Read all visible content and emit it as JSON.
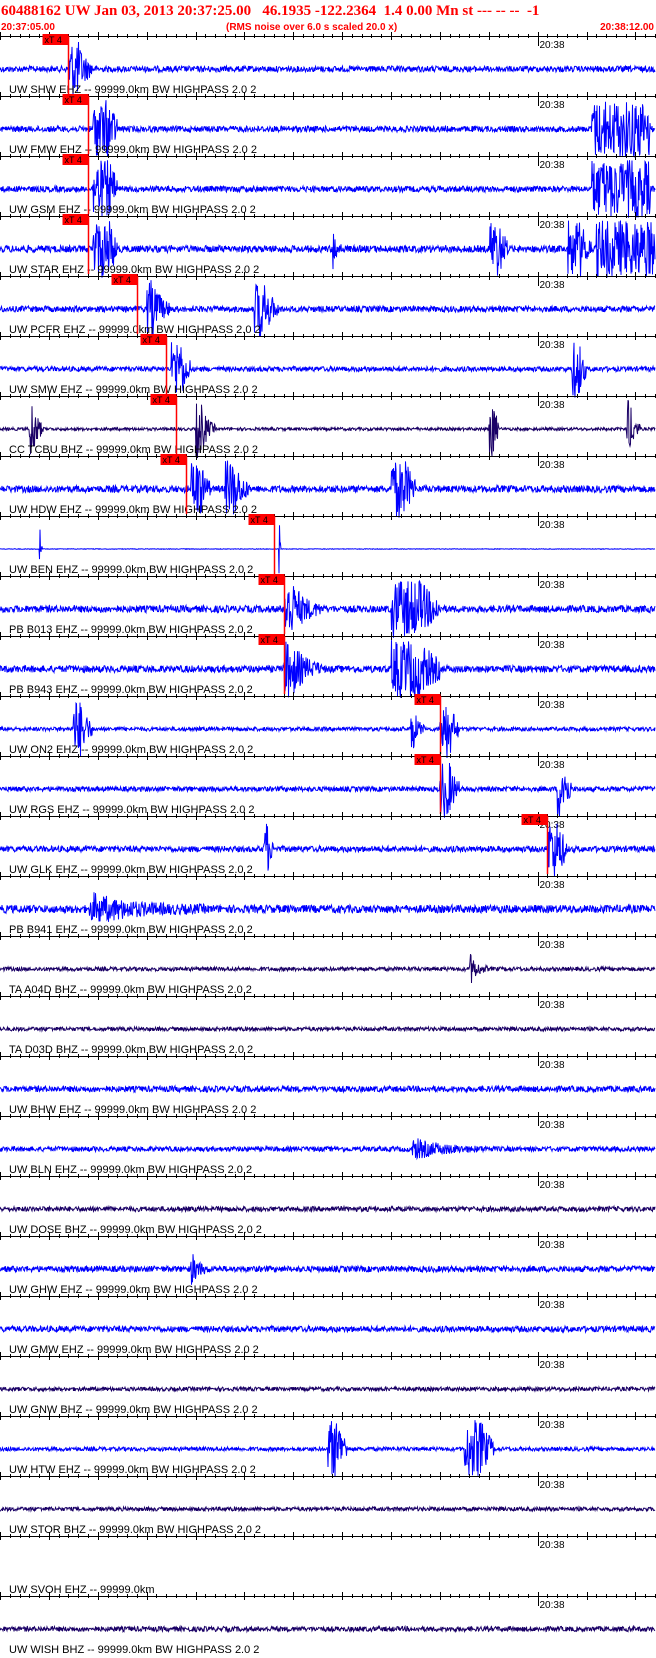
{
  "header": {
    "title": "60488162 UW Jan 03, 2013 20:37:25.00   46.1935 -122.2364  1.4 0.00 Mn st --- -- --  -1",
    "start_time": "20:37:05.00",
    "rms_note": "(RMS noise over 6.0 s scaled 20.0 x)",
    "end_time": "20:38:12.00"
  },
  "colors": {
    "trace_blue": "#0000ff",
    "trace_dark": "#1a0066",
    "pick_red": "#ff0000",
    "axis_black": "#000000"
  },
  "chart_data": {
    "type": "seismogram",
    "x_unit": "time",
    "time_start": "20:37:05.00",
    "time_end": "20:38:12.00",
    "minute_mark_label": "20:38",
    "pick_label": "xT 4",
    "traces": [
      {
        "label": "UW SHW EHZ -- 99999.0km BW  HIGHPASS  2.0  2",
        "color": "blue",
        "pick_s": 7,
        "amp": 3,
        "events": [
          [
            7,
            14,
            2.5
          ]
        ]
      },
      {
        "label": "UW FMW EHZ -- 99999.0km BW  HIGHPASS  2.0  2",
        "color": "blue",
        "pick_s": 9,
        "amp": 3,
        "events": [
          [
            9.5,
            32,
            2.5
          ],
          [
            60.5,
            80,
            6
          ]
        ]
      },
      {
        "label": "UW GSM EHZ -- 99999.0km BW  HIGHPASS  2.0  2",
        "color": "blue",
        "pick_s": 9,
        "amp": 3,
        "events": [
          [
            9.5,
            32,
            2.5
          ],
          [
            60.5,
            80,
            6
          ]
        ]
      },
      {
        "label": "UW STAR EHZ -- 99999.0km BW  HIGHPASS  2.0  2",
        "color": "blue",
        "pick_s": 9,
        "amp": 3.5,
        "events": [
          [
            9.5,
            32,
            2.5
          ],
          [
            34,
            4,
            1
          ],
          [
            50,
            20,
            2
          ],
          [
            58,
            22,
            2.5
          ],
          [
            61,
            80,
            6
          ]
        ]
      },
      {
        "label": "UW PCFR EHZ -- 99999.0km BW  HIGHPASS  2.0  2",
        "color": "blue",
        "pick_s": 14,
        "amp": 3,
        "events": [
          [
            15,
            10,
            2.5
          ],
          [
            26,
            14,
            2.5
          ]
        ]
      },
      {
        "label": "UW SMW EHZ -- 99999.0km BW  HIGHPASS  2.0  2",
        "color": "blue",
        "pick_s": 17,
        "amp": 2.5,
        "events": [
          [
            17.5,
            22,
            2
          ],
          [
            58.5,
            20,
            1.5
          ]
        ]
      },
      {
        "label": "CC TCBU BHZ -- 99999.0km BW  HIGHPASS  2.0  2",
        "color": "dark",
        "pick_s": 18,
        "amp": 1.5,
        "events": [
          [
            3,
            10,
            1.5
          ],
          [
            20,
            10,
            2
          ],
          [
            50,
            22,
            1
          ],
          [
            64,
            10,
            1.5
          ]
        ]
      },
      {
        "label": "UW HDW EHZ -- 99999.0km BW  HIGHPASS  2.0  2",
        "color": "blue",
        "pick_s": 19,
        "amp": 3.5,
        "events": [
          [
            19.5,
            18,
            2
          ],
          [
            23,
            14,
            2.5
          ],
          [
            40,
            25,
            2.5
          ]
        ]
      },
      {
        "label": "UW BEN EHZ -- 99999.0km BW  HIGHPASS  2.0  2",
        "color": "blue",
        "pick_s": 28,
        "amp": 0.3,
        "events": [
          [
            4,
            16,
            0.3
          ],
          [
            28.5,
            30,
            0.2
          ]
        ]
      },
      {
        "label": "PB B013 EHZ -- 99999.0km BW  HIGHPASS  2.0  2",
        "color": "blue",
        "pick_s": 29,
        "amp": 3.5,
        "events": [
          [
            29,
            8,
            4
          ],
          [
            40,
            26,
            5
          ]
        ]
      },
      {
        "label": "PB B943 EHZ -- 99999.0km BW  HIGHPASS  2.0  2",
        "color": "blue",
        "pick_s": 29,
        "amp": 3.5,
        "events": [
          [
            29,
            8,
            4
          ],
          [
            40,
            26,
            5
          ]
        ]
      },
      {
        "label": "UW ON2 EHZ -- 99999.0km BW  HIGHPASS  2.0  2",
        "color": "blue",
        "pick_s": 45,
        "amp": 2,
        "events": [
          [
            7.5,
            16,
            2
          ],
          [
            42,
            6,
            1.5
          ],
          [
            45,
            20,
            2
          ]
        ]
      },
      {
        "label": "UW RGS EHZ -- 99999.0km BW  HIGHPASS  2.0  2",
        "color": "blue",
        "pick_s": 45,
        "amp": 2.5,
        "events": [
          [
            45,
            18,
            2
          ],
          [
            57,
            18,
            1.5
          ]
        ]
      },
      {
        "label": "UW GLK EHZ -- 99999.0km BW  HIGHPASS  2.0  2",
        "color": "blue",
        "pick_s": 56,
        "amp": 3,
        "events": [
          [
            27,
            12,
            1
          ],
          [
            56,
            24,
            2
          ]
        ]
      },
      {
        "label": "PB B941 EHZ -- 99999.0km BW  HIGHPASS  2.0  2",
        "color": "blue",
        "pick_s": null,
        "amp": 4,
        "events": [
          [
            9,
            2.5,
            12
          ]
        ]
      },
      {
        "label": "TA A04D BHZ -- 99999.0km BW  HIGHPASS  2.0  2",
        "color": "dark",
        "pick_s": null,
        "amp": 2,
        "events": [
          [
            48,
            3,
            2
          ]
        ]
      },
      {
        "label": "TA D03D BHZ -- 99999.0km BW  HIGHPASS  2.0  2",
        "color": "dark",
        "pick_s": null,
        "amp": 2,
        "events": []
      },
      {
        "label": "UW BHW EHZ -- 99999.0km BW  HIGHPASS  2.0  2",
        "color": "blue",
        "pick_s": null,
        "amp": 3,
        "events": []
      },
      {
        "label": "UW BLN EHZ -- 99999.0km BW  HIGHPASS  2.0  2",
        "color": "blue",
        "pick_s": null,
        "amp": 2.5,
        "events": [
          [
            42,
            1.8,
            8
          ]
        ]
      },
      {
        "label": "UW DOSE BHZ -- 99999.0km BW  HIGHPASS  2.0  2",
        "color": "dark",
        "pick_s": null,
        "amp": 2.5,
        "events": []
      },
      {
        "label": "UW GHW EHZ -- 99999.0km BW  HIGHPASS  2.0  2",
        "color": "blue",
        "pick_s": null,
        "amp": 3,
        "events": [
          [
            19.5,
            3,
            2
          ]
        ]
      },
      {
        "label": "UW GMW EHZ -- 99999.0km BW  HIGHPASS  2.0  2",
        "color": "blue",
        "pick_s": null,
        "amp": 3,
        "events": []
      },
      {
        "label": "UW GNW BHZ -- 99999.0km BW  HIGHPASS  2.0  2",
        "color": "dark",
        "pick_s": null,
        "amp": 2,
        "events": []
      },
      {
        "label": "UW HTW EHZ -- 99999.0km BW  HIGHPASS  2.0  2",
        "color": "blue",
        "pick_s": null,
        "amp": 2,
        "events": [
          [
            33.5,
            25,
            2
          ],
          [
            47.5,
            25,
            3
          ]
        ]
      },
      {
        "label": "UW STOR BHZ -- 99999.0km BW  HIGHPASS  2.0  2",
        "color": "dark",
        "pick_s": null,
        "amp": 2,
        "events": []
      },
      {
        "label": "UW SVOH EHZ -- 99999.0km",
        "color": "none",
        "pick_s": null,
        "amp": 0,
        "events": []
      },
      {
        "label": "UW WISH BHZ -- 99999.0km BW  HIGHPASS  2.0  2",
        "color": "dark",
        "pick_s": null,
        "amp": 2.5,
        "events": []
      }
    ]
  }
}
